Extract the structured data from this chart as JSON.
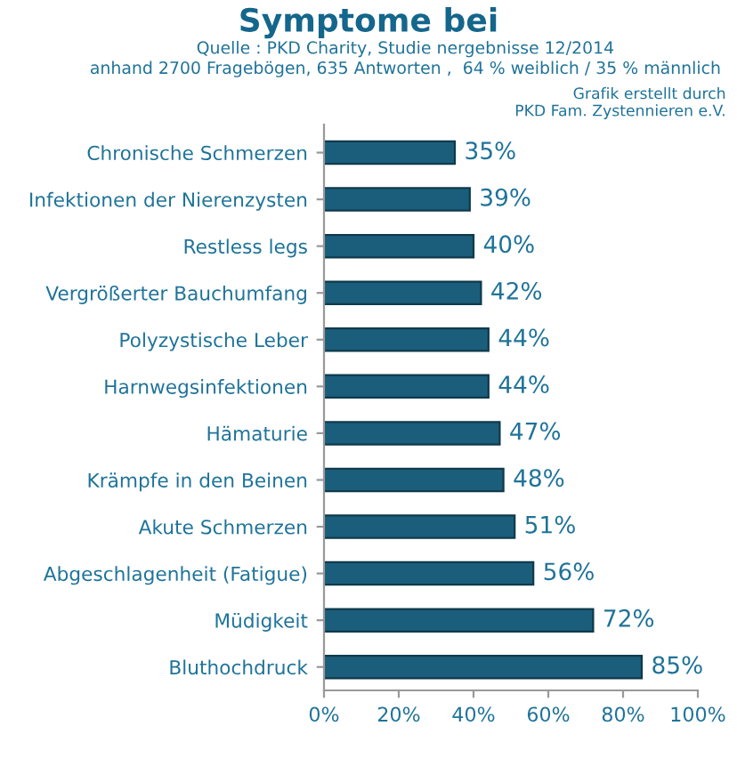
{
  "chart_data": {
    "type": "bar",
    "orientation": "horizontal",
    "title": "Symptome bei",
    "subtitle": "Quelle : PKD Charity, Studie nergebnisse 12/2014\nanhand 2700 Fragebögen, 635 Antworten ,  64 % weiblich / 35 % männlich",
    "annotations": [
      "Grafik erstellt durch\nPKD Fam. Zystennieren e.V."
    ],
    "categories": [
      "Chronische Schmerzen",
      "Infektionen der Nierenzysten",
      "Restless legs",
      "Vergrößerter Bauchumfang",
      "Polyzystische Leber",
      "Harnwegsinfektionen",
      "Hämaturie",
      "Krämpfe in den Beinen",
      "Akute Schmerzen",
      "Abgeschlagenheit (Fatigue)",
      "Müdigkeit",
      "Bluthochdruck"
    ],
    "values": [
      35,
      39,
      40,
      42,
      44,
      44,
      47,
      48,
      51,
      56,
      72,
      85
    ],
    "value_labels": [
      "35%",
      "39%",
      "40%",
      "42%",
      "44%",
      "44%",
      "47%",
      "48%",
      "51%",
      "56%",
      "72%",
      "85%"
    ],
    "color": "#1b5e7b",
    "xlim": [
      0,
      100
    ],
    "xticks": [
      {
        "value": 0,
        "label": "0%"
      },
      {
        "value": 20,
        "label": "20%"
      },
      {
        "value": 40,
        "label": "40%"
      },
      {
        "value": 60,
        "label": "60%"
      },
      {
        "value": 80,
        "label": "80%"
      },
      {
        "value": 100,
        "label": "100%"
      }
    ],
    "grid": false,
    "legend": false
  }
}
